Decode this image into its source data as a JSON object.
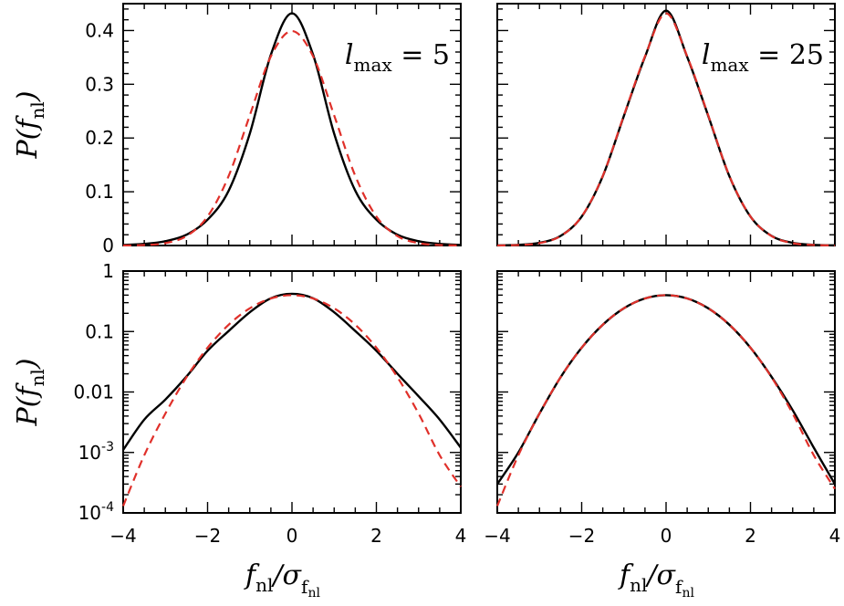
{
  "chart_data": [
    {
      "type": "line",
      "panel": "top-left",
      "annotation": {
        "base": "l",
        "sub": "max",
        "rest": " = 5"
      },
      "ylabel": {
        "base": "P(",
        "var": "f",
        "sub": "nl",
        "close": ")"
      },
      "xlim": [
        -4,
        4
      ],
      "ylim": [
        0,
        0.45
      ],
      "yscale": "linear",
      "xticks": [
        -4,
        -2,
        0,
        2,
        4
      ],
      "yticks": [
        0,
        0.1,
        0.2,
        0.3,
        0.4
      ],
      "ytick_labels": [
        "0",
        "0.1",
        "0.2",
        "0.3",
        "0.4"
      ],
      "series": [
        {
          "style": "solid-black",
          "x": [
            -4,
            -3.5,
            -3,
            -2.5,
            -2,
            -1.5,
            -1,
            -0.5,
            0,
            0.5,
            1,
            1.5,
            2,
            2.5,
            3,
            3.5,
            4
          ],
          "y": [
            0.001,
            0.003,
            0.008,
            0.02,
            0.048,
            0.102,
            0.208,
            0.355,
            0.432,
            0.355,
            0.208,
            0.102,
            0.048,
            0.02,
            0.008,
            0.003,
            0.001
          ]
        },
        {
          "style": "dashed-red",
          "x": [
            -4,
            -3.5,
            -3,
            -2.5,
            -2,
            -1.5,
            -1,
            -0.5,
            0,
            0.5,
            1,
            1.5,
            2,
            2.5,
            3,
            3.5,
            4
          ],
          "y": [
            0.0001,
            0.0009,
            0.0044,
            0.0175,
            0.054,
            0.1295,
            0.242,
            0.352,
            0.399,
            0.352,
            0.242,
            0.1295,
            0.054,
            0.0175,
            0.0044,
            0.0009,
            0.0001
          ]
        }
      ]
    },
    {
      "type": "line",
      "panel": "top-right",
      "annotation": {
        "base": "l",
        "sub": "max",
        "rest": " = 25"
      },
      "xlim": [
        -4,
        4
      ],
      "ylim": [
        0,
        0.45
      ],
      "yscale": "linear",
      "xticks": [
        -4,
        -2,
        0,
        2,
        4
      ],
      "yticks": [
        0,
        0.1,
        0.2,
        0.3,
        0.4
      ],
      "series": [
        {
          "style": "solid-black",
          "x": [
            -4,
            -3.5,
            -3,
            -2.5,
            -2,
            -1.5,
            -1,
            -0.5,
            0,
            0.5,
            1,
            1.5,
            2,
            2.5,
            3,
            3.5,
            4
          ],
          "y": [
            0.0002,
            0.0011,
            0.005,
            0.0178,
            0.0538,
            0.129,
            0.241,
            0.351,
            0.437,
            0.351,
            0.241,
            0.129,
            0.0538,
            0.0178,
            0.005,
            0.0011,
            0.0002
          ]
        },
        {
          "style": "dashed-red",
          "x": [
            -4,
            -3.5,
            -3,
            -2.5,
            -2,
            -1.5,
            -1,
            -0.5,
            0,
            0.5,
            1,
            1.5,
            2,
            2.5,
            3,
            3.5,
            4
          ],
          "y": [
            0.0001,
            0.0009,
            0.0044,
            0.0175,
            0.054,
            0.1295,
            0.242,
            0.352,
            0.432,
            0.352,
            0.242,
            0.1295,
            0.054,
            0.0175,
            0.0044,
            0.0009,
            0.0001
          ]
        }
      ]
    },
    {
      "type": "line",
      "panel": "bottom-left",
      "ylabel": {
        "base": "P(",
        "var": "f",
        "sub": "nl",
        "close": ")"
      },
      "xlabel": {
        "var": "f",
        "sub": "nl",
        "sep": "/σ",
        "sub2": "f",
        "sub3": "nl"
      },
      "xlim": [
        -4,
        4
      ],
      "ylim": [
        0.0001,
        1
      ],
      "yscale": "log",
      "xticks": [
        -4,
        -2,
        0,
        2,
        4
      ],
      "xtick_labels": [
        "−4",
        "−2",
        "0",
        "2",
        "4"
      ],
      "yticks": [
        1,
        0.1,
        0.01,
        0.001,
        0.0001
      ],
      "ytick_labels": [
        {
          "base": "1",
          "exp": ""
        },
        {
          "base": "0.1",
          "exp": ""
        },
        {
          "base": "0.01",
          "exp": ""
        },
        {
          "base": "10",
          "exp": "-3"
        },
        {
          "base": "10",
          "exp": "-4"
        }
      ],
      "series": [
        {
          "style": "solid-black",
          "x": [
            -4,
            -3.5,
            -3,
            -2.5,
            -2,
            -1.5,
            -1,
            -0.5,
            0,
            0.5,
            1,
            1.5,
            2,
            2.5,
            3,
            3.5,
            4
          ],
          "y": [
            0.0011,
            0.0035,
            0.0075,
            0.018,
            0.048,
            0.102,
            0.208,
            0.355,
            0.42,
            0.355,
            0.208,
            0.102,
            0.048,
            0.02,
            0.0085,
            0.0035,
            0.0012
          ]
        },
        {
          "style": "dashed-red",
          "x": [
            -4,
            -3.5,
            -3,
            -2.5,
            -2,
            -1.5,
            -1,
            -0.5,
            0,
            0.5,
            1,
            1.5,
            2,
            2.5,
            3,
            3.5,
            4
          ],
          "y": [
            0.00013,
            0.0009,
            0.0044,
            0.0175,
            0.054,
            0.1295,
            0.242,
            0.352,
            0.399,
            0.352,
            0.242,
            0.1295,
            0.054,
            0.0175,
            0.0044,
            0.0009,
            0.00027
          ]
        }
      ]
    },
    {
      "type": "line",
      "panel": "bottom-right",
      "xlabel": {
        "var": "f",
        "sub": "nl",
        "sep": "/σ",
        "sub2": "f",
        "sub3": "nl"
      },
      "xlim": [
        -4,
        4
      ],
      "ylim": [
        0.0001,
        1
      ],
      "yscale": "log",
      "xticks": [
        -4,
        -2,
        0,
        2,
        4
      ],
      "xtick_labels": [
        "−4",
        "−2",
        "0",
        "2",
        "4"
      ],
      "yticks": [
        1,
        0.1,
        0.01,
        0.001,
        0.0001
      ],
      "series": [
        {
          "style": "solid-black",
          "x": [
            -4,
            -3.5,
            -3,
            -2.5,
            -2,
            -1.5,
            -1,
            -0.5,
            0,
            0.5,
            1,
            1.5,
            2,
            2.5,
            3,
            3.5,
            4
          ],
          "y": [
            0.0003,
            0.001,
            0.0044,
            0.0175,
            0.054,
            0.1295,
            0.242,
            0.352,
            0.399,
            0.352,
            0.242,
            0.1295,
            0.054,
            0.0178,
            0.005,
            0.0012,
            0.0003
          ]
        },
        {
          "style": "dashed-red",
          "x": [
            -4,
            -3.5,
            -3,
            -2.5,
            -2,
            -1.5,
            -1,
            -0.5,
            0,
            0.5,
            1,
            1.5,
            2,
            2.5,
            3,
            3.5,
            4
          ],
          "y": [
            0.00013,
            0.0009,
            0.0044,
            0.0175,
            0.054,
            0.1295,
            0.242,
            0.352,
            0.399,
            0.352,
            0.242,
            0.1295,
            0.054,
            0.0175,
            0.0044,
            0.0009,
            0.00025
          ]
        }
      ]
    }
  ]
}
